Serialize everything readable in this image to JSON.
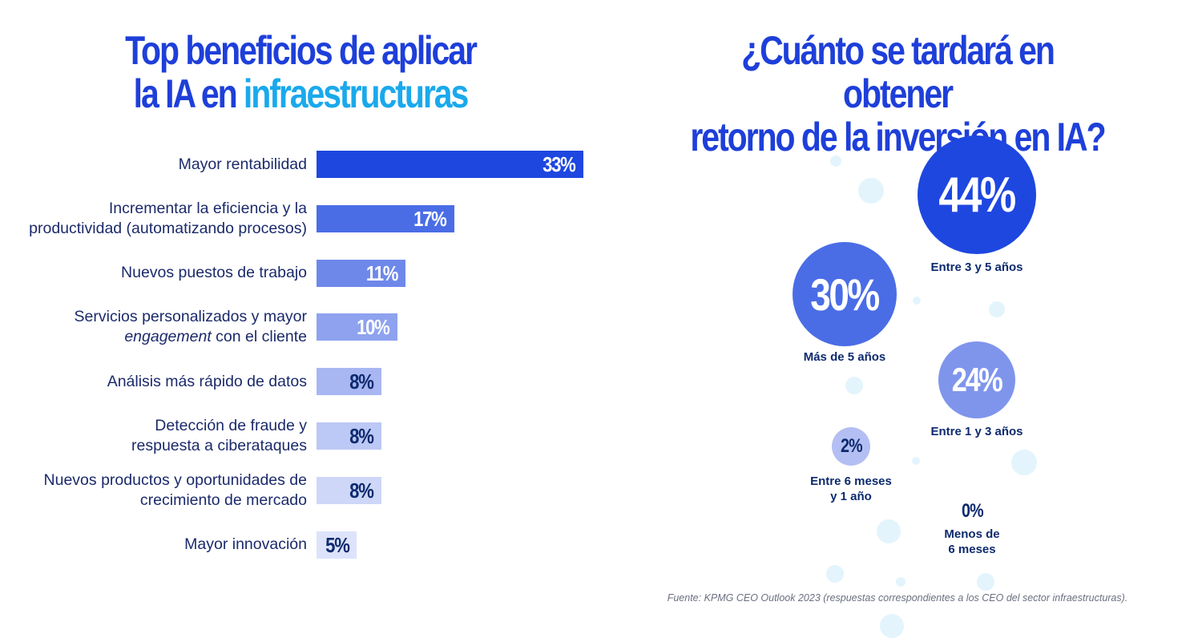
{
  "left_title": {
    "line1": "Top beneficios de aplicar",
    "line2_prefix": "la IA en ",
    "line2_highlight": "infraestructuras"
  },
  "right_title": {
    "line1": "¿Cuánto se tardará en obtener",
    "line2": "retorno de la inversión en IA?"
  },
  "source": "Fuente: KPMG CEO Outlook 2023 (respuestas correspondientes a los CEO del sector infraestructuras).",
  "colors": {
    "title": "#1e3fd9",
    "title_highlight": "#1aa9ec",
    "label_text": "#1b2a6b",
    "dark_value": "#0d2a6e"
  },
  "chart_data": [
    {
      "type": "bar",
      "orientation": "horizontal",
      "categories": [
        {
          "line1": "Mayor rentabilidad",
          "line2": ""
        },
        {
          "line1": "Incrementar la eficiencia y la",
          "line2": "productividad (automatizando procesos)"
        },
        {
          "line1": "Nuevos puestos de trabajo",
          "line2": ""
        },
        {
          "line1": "Servicios personalizados y mayor",
          "line2_italic": "engagement",
          "line2_rest": " con el cliente"
        },
        {
          "line1": "Análisis más rápido de datos",
          "line2": ""
        },
        {
          "line1": "Detección de fraude y",
          "line2": "respuesta a ciberataques"
        },
        {
          "line1": "Nuevos productos y oportunidades de",
          "line2": "crecimiento de mercado"
        },
        {
          "line1": "Mayor innovación",
          "line2": ""
        }
      ],
      "values": [
        33,
        17,
        11,
        10,
        8,
        8,
        8,
        5
      ],
      "value_labels": [
        "33%",
        "17%",
        "11%",
        "10%",
        "8%",
        "8%",
        "8%",
        "5%"
      ],
      "bar_colors": [
        "#1e47e0",
        "#4a6de6",
        "#6e88ea",
        "#8ea2ef",
        "#a8b6f2",
        "#bcc8f5",
        "#ced7f8",
        "#dde3fa"
      ],
      "value_colors": [
        "#ffffff",
        "#ffffff",
        "#ffffff",
        "#ffffff",
        "#0d2a6e",
        "#0d2a6e",
        "#0d2a6e",
        "#0d2a6e"
      ],
      "unit": "%"
    },
    {
      "type": "bubble",
      "items": [
        {
          "value": 44,
          "label": "44%",
          "caption_line1": "Entre 3 y 5 años",
          "caption_line2": "",
          "color": "#1e47e0",
          "text_color": "#ffffff"
        },
        {
          "value": 30,
          "label": "30%",
          "caption_line1": "Más de 5 años",
          "caption_line2": "",
          "color": "#4a6de6",
          "text_color": "#ffffff"
        },
        {
          "value": 24,
          "label": "24%",
          "caption_line1": "Entre 1 y 3 años",
          "caption_line2": "",
          "color": "#7f95ec",
          "text_color": "#ffffff"
        },
        {
          "value": 2,
          "label": "2%",
          "caption_line1": "Entre 6 meses",
          "caption_line2": "y 1 año",
          "color": "#b3bff3",
          "text_color": "#0d2a6e"
        },
        {
          "value": 0,
          "label": "0%",
          "caption_line1": "Menos de",
          "caption_line2": "6 meses",
          "color": "",
          "text_color": "#0d2a6e"
        }
      ],
      "unit": "%"
    }
  ]
}
